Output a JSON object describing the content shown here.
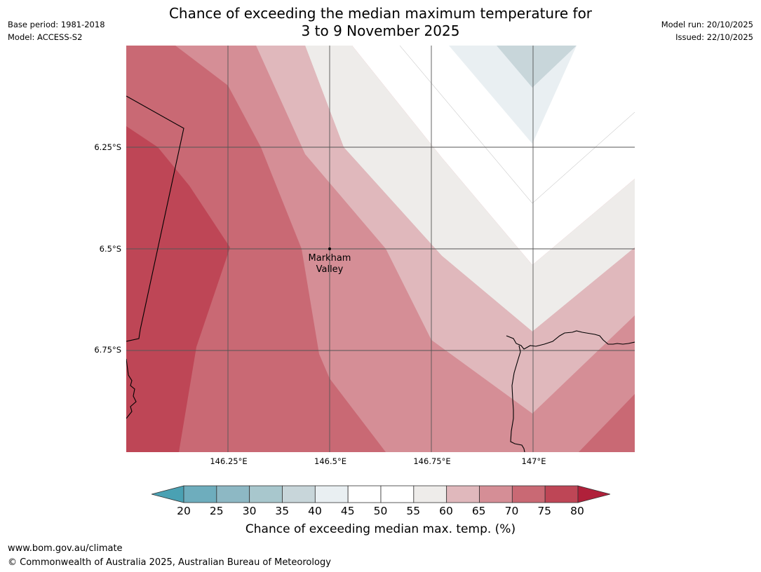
{
  "header": {
    "title_line1": "Chance of exceeding the median maximum temperature for",
    "title_line2": "3 to 9 November 2025",
    "base_period": "Base period: 1981-2018",
    "model": "Model: ACCESS-S2",
    "model_run": "Model run: 20/10/2025",
    "issued": "Issued: 22/10/2025"
  },
  "map": {
    "place_label_line1": "Markham",
    "place_label_line2": "Valley",
    "lat_labels": [
      "6.25°S",
      "6.5°S",
      "6.75°S"
    ],
    "lon_labels": [
      "146.25°E",
      "146.5°E",
      "146.75°E",
      "147°E"
    ]
  },
  "colorbar": {
    "ticks": [
      "20",
      "25",
      "30",
      "35",
      "40",
      "45",
      "50",
      "55",
      "60",
      "65",
      "70",
      "75",
      "80"
    ],
    "colors": [
      "#4aa1b3",
      "#6eadbd",
      "#8db8c4",
      "#a8c7cd",
      "#c8d6da",
      "#e9eff2",
      "#ffffff",
      "#ffffff",
      "#eeecea",
      "#e0b8bc",
      "#d58e96",
      "#c96974",
      "#be4656",
      "#b0203a"
    ],
    "label": "Chance of exceeding median max. temp. (%)"
  },
  "footer": {
    "url": "www.bom.gov.au/climate",
    "copyright": "© Commonwealth of Australia 2025, Australian Bureau of Meteorology"
  }
}
